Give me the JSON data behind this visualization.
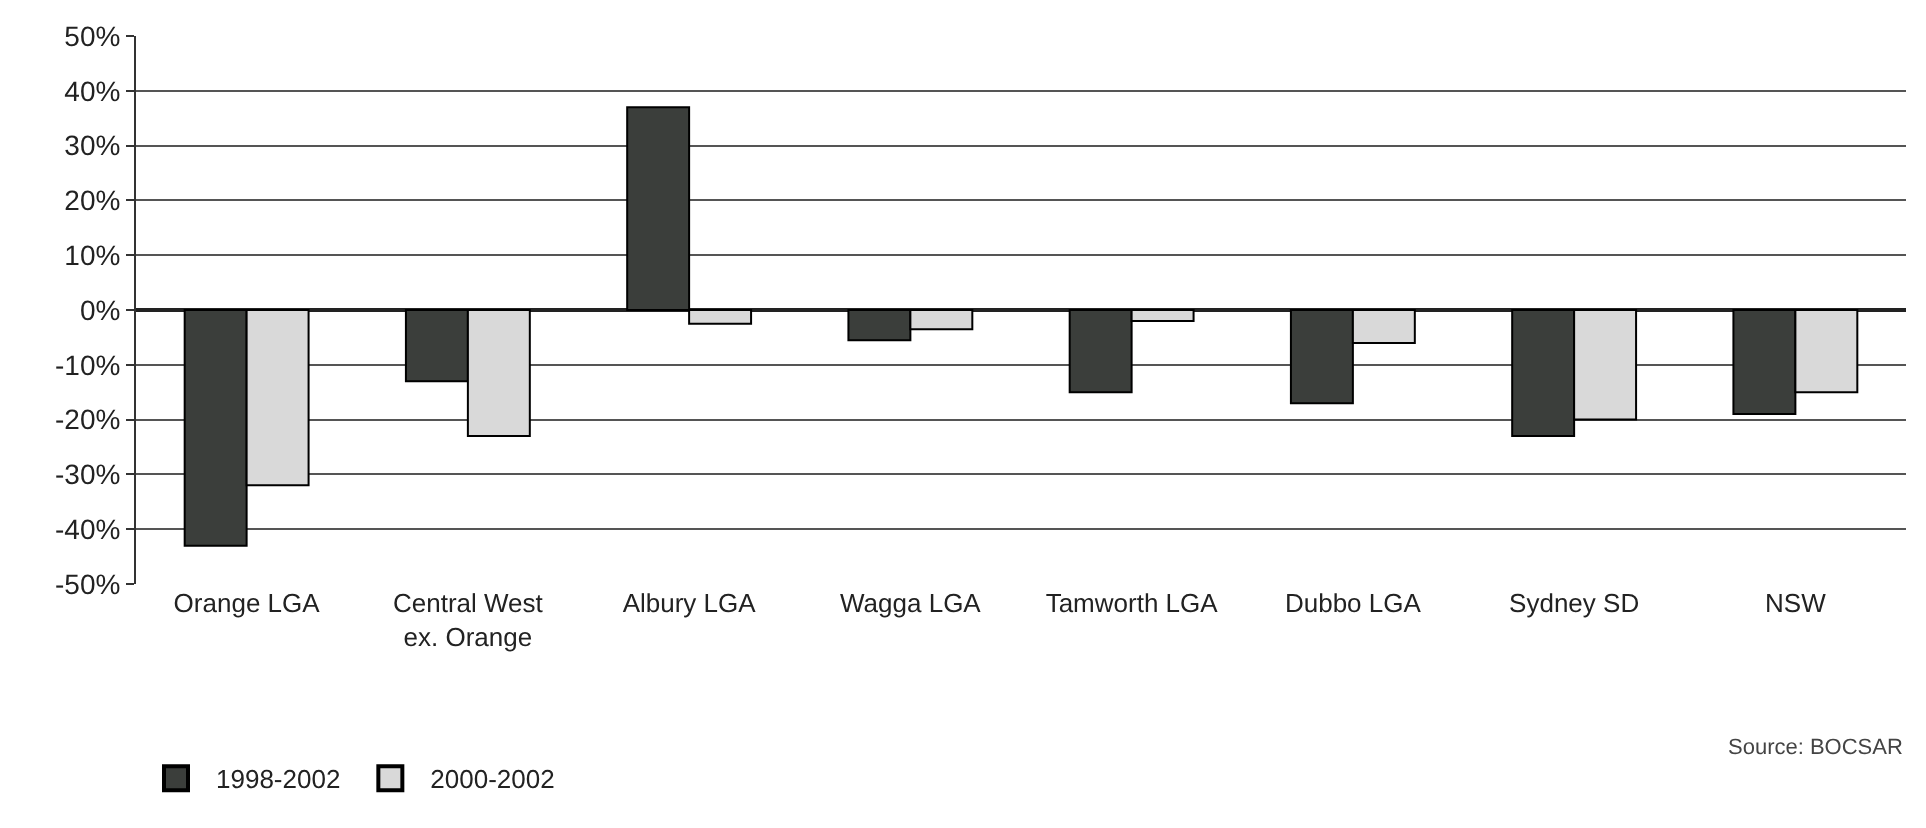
{
  "chart_data": {
    "type": "bar",
    "categories": [
      "Orange LGA",
      "Central West ex. Orange",
      "Albury LGA",
      "Wagga LGA",
      "Tamworth LGA",
      "Dubbo LGA",
      "Sydney SD",
      "NSW"
    ],
    "series": [
      {
        "name": "1998-2002",
        "color": "#3b3e3b",
        "values": [
          -43,
          -13,
          37,
          -5.5,
          -15,
          -17,
          -23,
          -19
        ]
      },
      {
        "name": "2000-2002",
        "color": "#d9d9d9",
        "values": [
          -32,
          -23,
          -2.5,
          -3.5,
          -2,
          -6,
          -20,
          -15
        ]
      }
    ],
    "ylim": [
      -50,
      50
    ],
    "yticks": [
      {
        "value": -50,
        "label": "-50%"
      },
      {
        "value": -40,
        "label": "-40%"
      },
      {
        "value": -30,
        "label": "-30%"
      },
      {
        "value": -20,
        "label": "-20%"
      },
      {
        "value": -10,
        "label": "-10%"
      },
      {
        "value": 0,
        "label": "0%"
      },
      {
        "value": 10,
        "label": "10%"
      },
      {
        "value": 20,
        "label": "20%"
      },
      {
        "value": 30,
        "label": "30%"
      },
      {
        "value": 40,
        "label": "40%"
      },
      {
        "value": 50,
        "label": "50%"
      }
    ],
    "grid": "y",
    "legend": "bottom left",
    "annotations": [
      "Source: BOCSAR"
    ]
  }
}
